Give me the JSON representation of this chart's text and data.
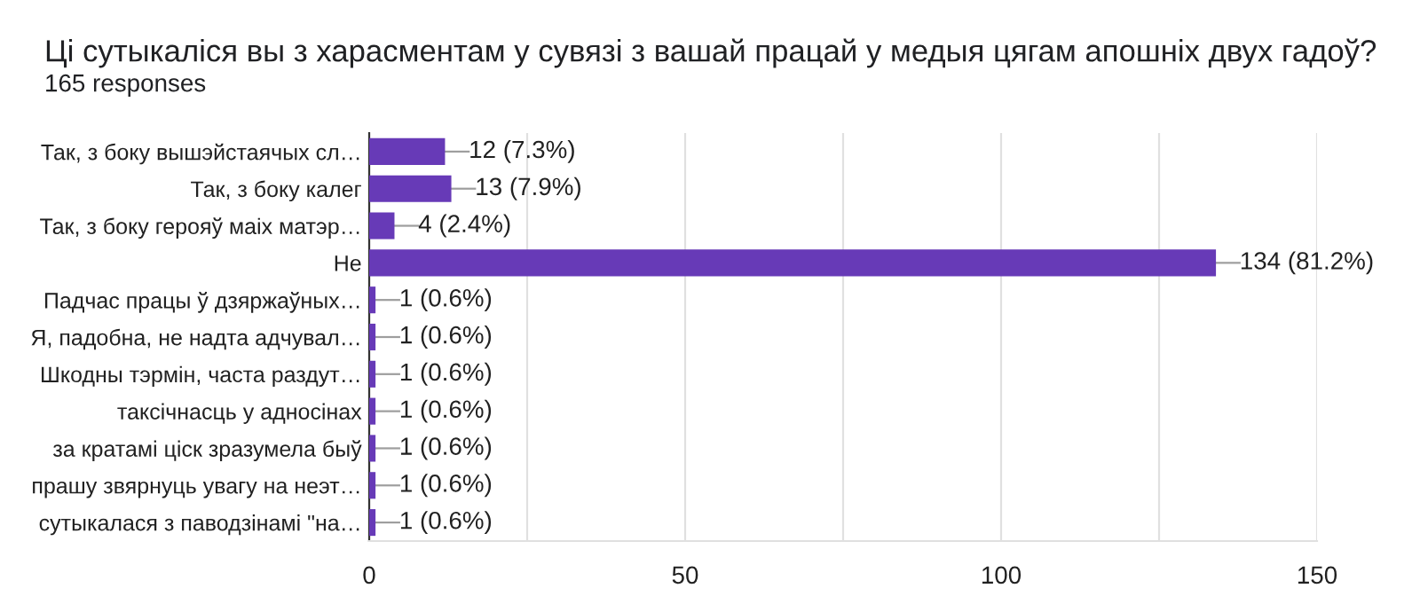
{
  "chart_data": {
    "type": "bar",
    "orientation": "horizontal",
    "title": "Ці сутыкаліся вы з харасментам у сувязі з вашай працай у медыя цягам апошніх двух гадоў?",
    "subtitle": "165 responses",
    "categories": [
      "Так, з боку вышэйстаячых сл…",
      "Так, з боку калег",
      "Так, з боку герояў маіх матэр…",
      "Не",
      "Падчас працы ў дзяржаўных…",
      "Я, падобна, не надта адчувал…",
      "Шкодны тэрмін, часта раздут…",
      "таксічнасць у адносінах",
      "за кратамі ціск зразумела быў",
      "прашу звярнуць увагу на неэт…",
      "сутыкалася з паводзінамі \"на…"
    ],
    "values": [
      12,
      13,
      4,
      134,
      1,
      1,
      1,
      1,
      1,
      1,
      1
    ],
    "value_labels": [
      "12 (7.3%)",
      "13 (7.9%)",
      "4 (2.4%)",
      "134 (81.2%)",
      "1 (0.6%)",
      "1 (0.6%)",
      "1 (0.6%)",
      "1 (0.6%)",
      "1 (0.6%)",
      "1 (0.6%)",
      "1 (0.6%)"
    ],
    "color": "#673ab7",
    "xlim": [
      0,
      150
    ],
    "xticks": [
      0,
      {
        "value": 25,
        "label": null
      },
      50,
      {
        "value": 75,
        "label": null
      },
      100,
      {
        "value": 125,
        "label": null
      },
      150
    ],
    "grid": "x"
  }
}
